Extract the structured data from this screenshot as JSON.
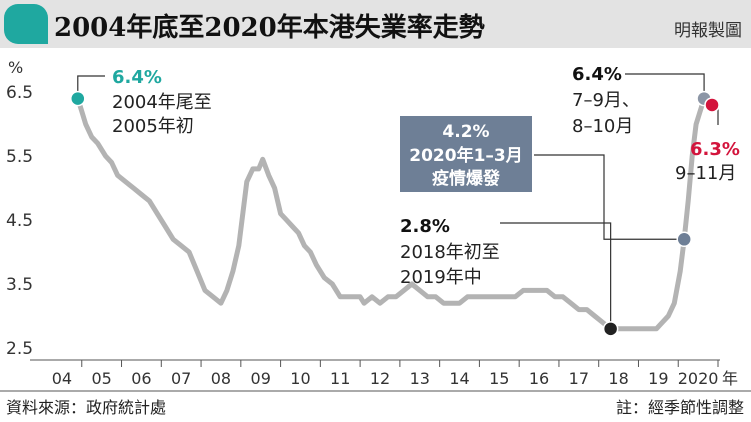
{
  "header": {
    "title": "2004年底至2020年本港失業率走勢",
    "credit": "明報製圖"
  },
  "footer": {
    "source": "資料來源：政府統計處",
    "note": "註：經季節性調整"
  },
  "colors": {
    "line": "#b3b3b3",
    "teal": "#1fa8a0",
    "red": "#d3143c",
    "gray_dot": "#8c96a6",
    "blue_dot": "#6e7f96",
    "dark": "#222222",
    "label_box": "#6e7f96",
    "header_band": "#e3e3e3"
  },
  "annotations": [
    {
      "id": "ann-2004",
      "value": "6.4%",
      "lines": [
        "2004年尾至",
        "2005年初"
      ]
    },
    {
      "id": "ann-2018",
      "value": "2.8%",
      "lines": [
        "2018年初至",
        "2019年中"
      ]
    },
    {
      "id": "ann-2020q1",
      "value": "4.2%",
      "lines": [
        "2020年1–3月",
        "疫情爆發"
      ]
    },
    {
      "id": "ann-2020q3",
      "value": "6.4%",
      "lines": [
        "7–9月、",
        "8–10月"
      ]
    },
    {
      "id": "ann-2020q4",
      "value": "6.3%",
      "lines": [
        "9–11月"
      ]
    }
  ],
  "chart_data": {
    "type": "line",
    "title": "2004年底至2020年本港失業率走勢",
    "ylabel": "%",
    "xlabel": "年",
    "ylim": [
      2.5,
      6.8
    ],
    "yticks": [
      "6.5",
      "5.5",
      "4.5",
      "3.5",
      "2.5"
    ],
    "xticks": [
      "04",
      "05",
      "06",
      "07",
      "08",
      "09",
      "10",
      "11",
      "12",
      "13",
      "14",
      "15",
      "16",
      "17",
      "18",
      "19",
      "2020"
    ],
    "x_unit_label": "年",
    "series": [
      {
        "points": [
          [
            2004.9,
            6.4
          ],
          [
            2005.0,
            6.2
          ],
          [
            2005.1,
            6.0
          ],
          [
            2005.25,
            5.8
          ],
          [
            2005.4,
            5.7
          ],
          [
            2005.6,
            5.5
          ],
          [
            2005.75,
            5.4
          ],
          [
            2005.9,
            5.2
          ],
          [
            2006.1,
            5.1
          ],
          [
            2006.3,
            5.0
          ],
          [
            2006.5,
            4.9
          ],
          [
            2006.7,
            4.8
          ],
          [
            2006.9,
            4.6
          ],
          [
            2007.1,
            4.4
          ],
          [
            2007.3,
            4.2
          ],
          [
            2007.5,
            4.1
          ],
          [
            2007.7,
            4.0
          ],
          [
            2007.9,
            3.7
          ],
          [
            2008.1,
            3.4
          ],
          [
            2008.3,
            3.3
          ],
          [
            2008.5,
            3.2
          ],
          [
            2008.65,
            3.4
          ],
          [
            2008.8,
            3.7
          ],
          [
            2008.95,
            4.1
          ],
          [
            2009.05,
            4.6
          ],
          [
            2009.15,
            5.1
          ],
          [
            2009.3,
            5.3
          ],
          [
            2009.45,
            5.3
          ],
          [
            2009.55,
            5.45
          ],
          [
            2009.7,
            5.2
          ],
          [
            2009.85,
            5.0
          ],
          [
            2010.0,
            4.6
          ],
          [
            2010.15,
            4.5
          ],
          [
            2010.3,
            4.4
          ],
          [
            2010.45,
            4.3
          ],
          [
            2010.6,
            4.1
          ],
          [
            2010.75,
            4.0
          ],
          [
            2010.9,
            3.8
          ],
          [
            2011.1,
            3.6
          ],
          [
            2011.3,
            3.5
          ],
          [
            2011.5,
            3.3
          ],
          [
            2011.8,
            3.3
          ],
          [
            2012.0,
            3.3
          ],
          [
            2012.1,
            3.2
          ],
          [
            2012.3,
            3.3
          ],
          [
            2012.5,
            3.2
          ],
          [
            2012.7,
            3.3
          ],
          [
            2012.9,
            3.3
          ],
          [
            2013.1,
            3.4
          ],
          [
            2013.3,
            3.5
          ],
          [
            2013.5,
            3.4
          ],
          [
            2013.7,
            3.3
          ],
          [
            2013.9,
            3.3
          ],
          [
            2014.1,
            3.2
          ],
          [
            2014.3,
            3.2
          ],
          [
            2014.5,
            3.2
          ],
          [
            2014.7,
            3.3
          ],
          [
            2014.9,
            3.3
          ],
          [
            2015.1,
            3.3
          ],
          [
            2015.3,
            3.3
          ],
          [
            2015.5,
            3.3
          ],
          [
            2015.7,
            3.3
          ],
          [
            2015.9,
            3.3
          ],
          [
            2016.1,
            3.4
          ],
          [
            2016.3,
            3.4
          ],
          [
            2016.5,
            3.4
          ],
          [
            2016.7,
            3.4
          ],
          [
            2016.9,
            3.3
          ],
          [
            2017.1,
            3.3
          ],
          [
            2017.3,
            3.2
          ],
          [
            2017.5,
            3.1
          ],
          [
            2017.7,
            3.1
          ],
          [
            2017.9,
            3.0
          ],
          [
            2018.1,
            2.9
          ],
          [
            2018.3,
            2.8
          ],
          [
            2018.5,
            2.8
          ],
          [
            2018.7,
            2.8
          ],
          [
            2018.9,
            2.8
          ],
          [
            2019.1,
            2.8
          ],
          [
            2019.3,
            2.8
          ],
          [
            2019.45,
            2.8
          ],
          [
            2019.6,
            2.9
          ],
          [
            2019.75,
            3.0
          ],
          [
            2019.9,
            3.2
          ],
          [
            2020.05,
            3.7
          ],
          [
            2020.15,
            4.2
          ],
          [
            2020.25,
            4.8
          ],
          [
            2020.35,
            5.5
          ],
          [
            2020.45,
            6.0
          ],
          [
            2020.55,
            6.2
          ],
          [
            2020.65,
            6.4
          ],
          [
            2020.75,
            6.4
          ],
          [
            2020.85,
            6.3
          ]
        ]
      }
    ],
    "markers": [
      {
        "x": 2004.9,
        "y": 6.4,
        "style": "teal"
      },
      {
        "x": 2018.3,
        "y": 2.8,
        "style": "dark"
      },
      {
        "x": 2020.15,
        "y": 4.2,
        "style": "blue_dot"
      },
      {
        "x": 2020.65,
        "y": 6.4,
        "style": "gray_dot"
      },
      {
        "x": 2020.85,
        "y": 6.3,
        "style": "red"
      }
    ]
  }
}
